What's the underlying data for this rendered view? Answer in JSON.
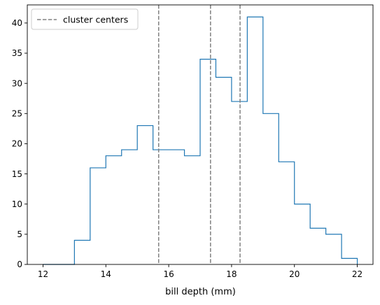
{
  "chart_data": {
    "type": "histogram",
    "xlabel": "bill depth (mm)",
    "ylabel": "",
    "xlim": [
      11.5,
      22.5
    ],
    "ylim": [
      0,
      43
    ],
    "x_ticks": [
      12,
      14,
      16,
      18,
      20,
      22
    ],
    "y_ticks": [
      0,
      5,
      10,
      15,
      20,
      25,
      30,
      35,
      40
    ],
    "grid": false,
    "legend_position": "top-left",
    "histogram": {
      "histtype": "step",
      "color": "#1f77b4",
      "bin_edges": [
        12.0,
        12.5,
        13.0,
        13.5,
        14.0,
        14.5,
        15.0,
        15.5,
        16.0,
        16.5,
        17.0,
        17.5,
        18.0,
        18.5,
        19.0,
        19.5,
        20.0,
        20.5,
        21.0,
        21.5,
        22.0
      ],
      "counts": [
        0,
        0,
        4,
        16,
        18,
        19,
        23,
        19,
        19,
        18,
        34,
        31,
        27,
        41,
        25,
        17,
        10,
        6,
        5,
        1
      ]
    },
    "series": [
      {
        "name": "cluster centers",
        "style": "dashed",
        "color": "#808080",
        "x_values": [
          15.68,
          17.33,
          18.27
        ]
      }
    ]
  }
}
